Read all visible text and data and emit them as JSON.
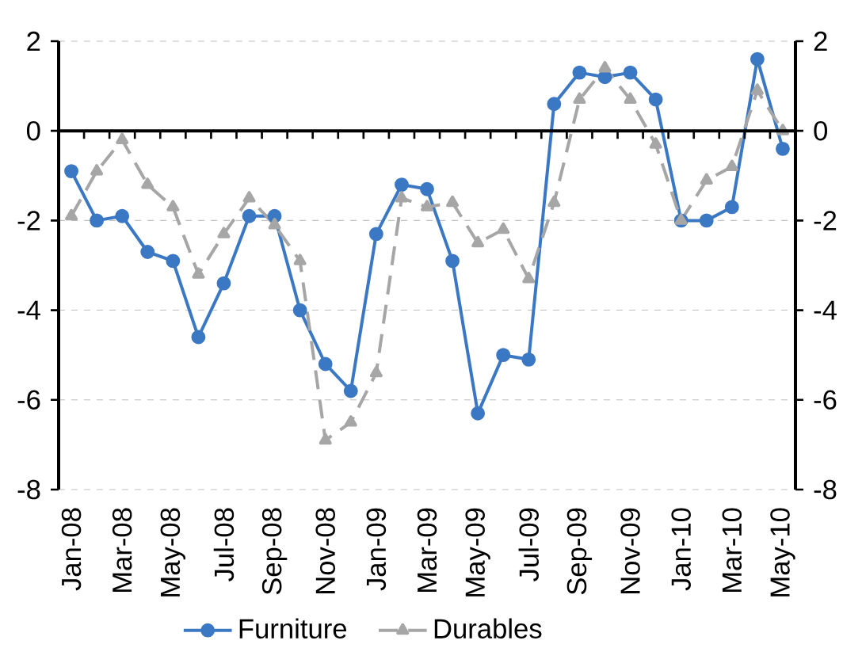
{
  "chart_data": {
    "type": "line",
    "categories": [
      "Jan-08",
      null,
      "Mar-08",
      null,
      "May-08",
      null,
      "Jul-08",
      null,
      "Sep-08",
      null,
      "Nov-08",
      null,
      "Jan-09",
      null,
      "Mar-09",
      null,
      "May-09",
      null,
      "Jul-09",
      null,
      "Sep-09",
      null,
      "Nov-09",
      null,
      "Jan-10",
      null,
      "Mar-10",
      null,
      "May-10"
    ],
    "series": [
      {
        "name": "Furniture",
        "color": "#3b78c4",
        "marker": "circle",
        "line_style": "solid",
        "values": [
          -0.9,
          -2.0,
          -1.9,
          -2.7,
          -2.9,
          -4.6,
          -3.4,
          -1.9,
          -1.9,
          -4.0,
          -5.2,
          -5.8,
          -2.3,
          -1.2,
          -1.3,
          -2.9,
          -6.3,
          -5.0,
          -5.1,
          0.6,
          1.3,
          1.2,
          1.3,
          0.7,
          -2.0,
          -2.0,
          -1.7,
          1.6,
          -0.4
        ]
      },
      {
        "name": "Durables",
        "color": "#a6a6a6",
        "marker": "triangle",
        "line_style": "dashed",
        "values": [
          -1.9,
          -0.9,
          -0.2,
          -1.2,
          -1.7,
          -3.2,
          -2.3,
          -1.5,
          -2.1,
          -2.9,
          -6.9,
          -6.5,
          -5.4,
          -1.5,
          -1.7,
          -1.6,
          -2.5,
          -2.2,
          -3.3,
          -1.6,
          0.7,
          1.4,
          0.7,
          -0.3,
          -2.0,
          -1.1,
          -0.8,
          0.9,
          0.0
        ]
      }
    ],
    "ylim": [
      -8,
      2
    ],
    "yticks": [
      -8,
      -6,
      -4,
      -2,
      0,
      2
    ],
    "y2lim": [
      -8,
      2
    ],
    "y2ticks": [
      -8,
      -6,
      -4,
      -2,
      0,
      2
    ],
    "grid": "y",
    "legend": "bottom"
  }
}
